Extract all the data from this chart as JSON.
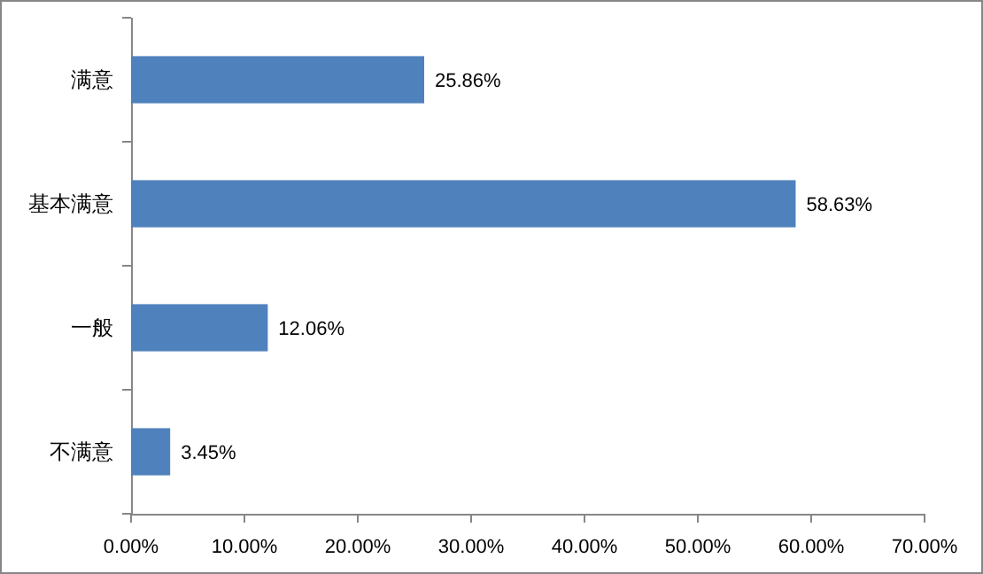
{
  "chart_data": {
    "type": "bar",
    "orientation": "horizontal",
    "categories": [
      "满意",
      "基本满意",
      "一般",
      "不满意"
    ],
    "values": [
      25.86,
      58.63,
      12.06,
      3.45
    ],
    "value_labels": [
      "25.86%",
      "58.63%",
      "12.06%",
      "3.45%"
    ],
    "color": "#4f81bd",
    "xlim": [
      0,
      70
    ],
    "xticks": [
      {
        "value": 0,
        "label": "0.00%"
      },
      {
        "value": 10,
        "label": "10.00%"
      },
      {
        "value": 20,
        "label": "20.00%"
      },
      {
        "value": 30,
        "label": "30.00%"
      },
      {
        "value": 40,
        "label": "40.00%"
      },
      {
        "value": 50,
        "label": "50.00%"
      },
      {
        "value": 60,
        "label": "60.00%"
      },
      {
        "value": 70,
        "label": "70.00%"
      }
    ],
    "grid": false
  }
}
